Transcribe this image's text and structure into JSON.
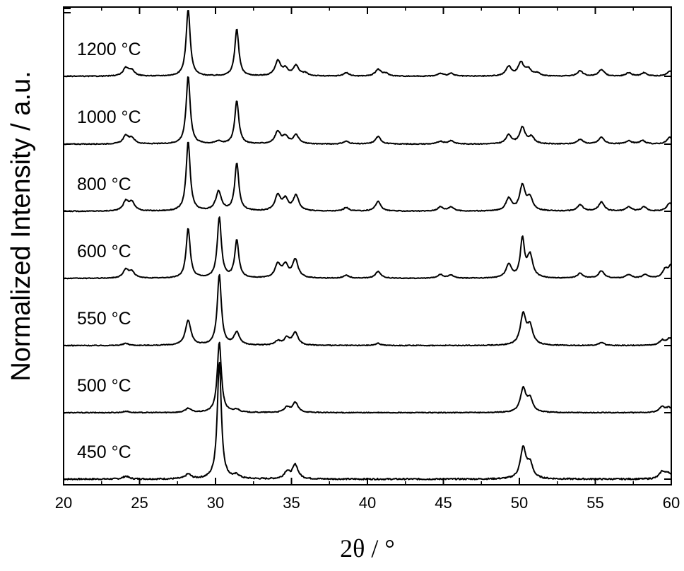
{
  "chart_data": {
    "type": "line",
    "title": "",
    "xlabel": "2θ / °",
    "ylabel": "Normalized Intensity / a.u.",
    "xlim": [
      20,
      60
    ],
    "x_ticks": [
      "20",
      "25",
      "30",
      "35",
      "40",
      "45",
      "50",
      "55",
      "60"
    ],
    "x_tick_values": [
      20,
      25,
      30,
      35,
      40,
      45,
      50,
      55,
      60
    ],
    "grid": false,
    "legend": "none",
    "y_tick_labels": false,
    "line_color": "#000000",
    "series": [
      {
        "name": "450 °C",
        "peaks": [
          [
            24.1,
            0.025
          ],
          [
            28.2,
            0.04
          ],
          [
            30.25,
            1.0
          ],
          [
            31.4,
            0.03
          ],
          [
            34.7,
            0.06
          ],
          [
            35.25,
            0.12
          ],
          [
            50.25,
            0.26
          ],
          [
            50.7,
            0.12
          ],
          [
            59.4,
            0.06
          ],
          [
            59.8,
            0.05
          ]
        ]
      },
      {
        "name": "500 °C",
        "peaks": [
          [
            24.1,
            0.02
          ],
          [
            28.2,
            0.06
          ],
          [
            30.25,
            1.0
          ],
          [
            31.4,
            0.04
          ],
          [
            34.7,
            0.07
          ],
          [
            35.25,
            0.14
          ],
          [
            50.25,
            0.33
          ],
          [
            50.7,
            0.18
          ],
          [
            59.4,
            0.08
          ],
          [
            59.85,
            0.07
          ]
        ]
      },
      {
        "name": "550 °C",
        "peaks": [
          [
            24.1,
            0.03
          ],
          [
            28.2,
            0.35
          ],
          [
            30.25,
            1.0
          ],
          [
            31.4,
            0.18
          ],
          [
            34.1,
            0.06
          ],
          [
            34.7,
            0.1
          ],
          [
            35.25,
            0.18
          ],
          [
            40.7,
            0.03
          ],
          [
            50.25,
            0.43
          ],
          [
            50.7,
            0.25
          ],
          [
            55.4,
            0.04
          ],
          [
            59.4,
            0.07
          ],
          [
            59.9,
            0.1
          ]
        ]
      },
      {
        "name": "600 °C",
        "peaks": [
          [
            24.1,
            0.14
          ],
          [
            24.5,
            0.1
          ],
          [
            28.2,
            0.82
          ],
          [
            30.25,
            1.0
          ],
          [
            31.4,
            0.62
          ],
          [
            34.1,
            0.22
          ],
          [
            34.6,
            0.2
          ],
          [
            35.25,
            0.3
          ],
          [
            38.6,
            0.05
          ],
          [
            40.7,
            0.11
          ],
          [
            44.8,
            0.06
          ],
          [
            45.5,
            0.05
          ],
          [
            49.3,
            0.22
          ],
          [
            50.2,
            0.63
          ],
          [
            50.7,
            0.37
          ],
          [
            54.0,
            0.08
          ],
          [
            55.4,
            0.12
          ],
          [
            57.2,
            0.06
          ],
          [
            58.3,
            0.06
          ],
          [
            59.6,
            0.13
          ],
          [
            60.0,
            0.2
          ]
        ]
      },
      {
        "name": "800 °C",
        "peaks": [
          [
            24.1,
            0.14
          ],
          [
            24.5,
            0.12
          ],
          [
            28.2,
            1.0
          ],
          [
            30.2,
            0.28
          ],
          [
            31.4,
            0.69
          ],
          [
            34.1,
            0.22
          ],
          [
            34.6,
            0.16
          ],
          [
            35.3,
            0.22
          ],
          [
            38.6,
            0.05
          ],
          [
            40.7,
            0.14
          ],
          [
            44.8,
            0.06
          ],
          [
            45.5,
            0.06
          ],
          [
            49.3,
            0.18
          ],
          [
            50.2,
            0.36
          ],
          [
            50.7,
            0.18
          ],
          [
            54.0,
            0.09
          ],
          [
            55.4,
            0.13
          ],
          [
            57.2,
            0.06
          ],
          [
            58.2,
            0.06
          ],
          [
            59.9,
            0.12
          ]
        ]
      },
      {
        "name": "1000 °C",
        "peaks": [
          [
            24.1,
            0.12
          ],
          [
            24.5,
            0.08
          ],
          [
            28.2,
            1.0
          ],
          [
            30.2,
            0.04
          ],
          [
            31.4,
            0.64
          ],
          [
            34.1,
            0.18
          ],
          [
            34.6,
            0.1
          ],
          [
            35.3,
            0.13
          ],
          [
            38.6,
            0.04
          ],
          [
            40.7,
            0.11
          ],
          [
            44.8,
            0.04
          ],
          [
            45.5,
            0.05
          ],
          [
            49.3,
            0.13
          ],
          [
            50.2,
            0.24
          ],
          [
            50.8,
            0.1
          ],
          [
            54.0,
            0.07
          ],
          [
            55.4,
            0.1
          ],
          [
            57.2,
            0.05
          ],
          [
            58.1,
            0.05
          ],
          [
            59.9,
            0.1
          ]
        ]
      },
      {
        "name": "1200 °C",
        "peaks": [
          [
            24.1,
            0.12
          ],
          [
            24.5,
            0.08
          ],
          [
            28.2,
            1.0
          ],
          [
            31.4,
            0.7
          ],
          [
            34.1,
            0.22
          ],
          [
            34.6,
            0.1
          ],
          [
            35.3,
            0.15
          ],
          [
            35.9,
            0.04
          ],
          [
            38.6,
            0.05
          ],
          [
            40.7,
            0.1
          ],
          [
            41.2,
            0.04
          ],
          [
            44.8,
            0.04
          ],
          [
            45.5,
            0.04
          ],
          [
            49.3,
            0.14
          ],
          [
            50.1,
            0.2
          ],
          [
            50.6,
            0.1
          ],
          [
            51.2,
            0.04
          ],
          [
            54.0,
            0.08
          ],
          [
            55.4,
            0.1
          ],
          [
            57.2,
            0.05
          ],
          [
            58.2,
            0.05
          ],
          [
            59.9,
            0.08
          ]
        ]
      }
    ]
  }
}
